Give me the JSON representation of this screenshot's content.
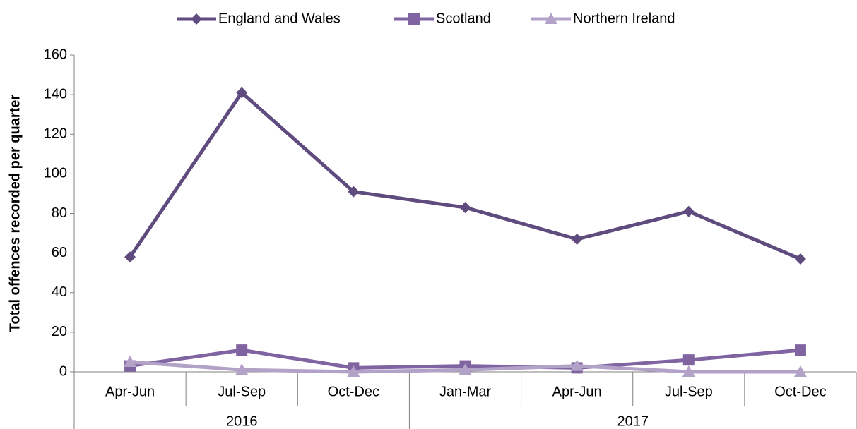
{
  "chart_data": {
    "type": "line",
    "y_label": "Total offences recorded per quarter",
    "categories": [
      "Apr-Jun",
      "Jul-Sep",
      "Oct-Dec",
      "Jan-Mar",
      "Apr-Jun",
      "Jul-Sep",
      "Oct-Dec"
    ],
    "groups": [
      {
        "label": "2016",
        "span": 3
      },
      {
        "label": "2017",
        "span": 4
      }
    ],
    "series": [
      {
        "name": "England and Wales",
        "color": "#5f4b7e",
        "marker": "diamond",
        "values": [
          58,
          141,
          91,
          83,
          67,
          81,
          57
        ]
      },
      {
        "name": "Scotland",
        "color": "#8064a2",
        "marker": "square",
        "values": [
          3,
          11,
          2,
          3,
          2,
          6,
          11
        ]
      },
      {
        "name": "Northern Ireland",
        "color": "#b3a2c7",
        "marker": "triangle",
        "values": [
          5,
          1,
          0,
          1,
          3,
          0,
          0
        ]
      }
    ],
    "ylim": [
      0,
      160
    ],
    "yticks": [
      0,
      20,
      40,
      60,
      80,
      100,
      120,
      140,
      160
    ],
    "legend": "top"
  }
}
